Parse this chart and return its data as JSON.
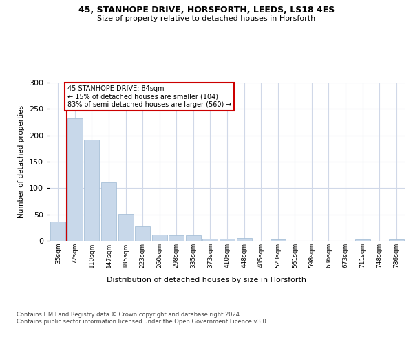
{
  "title1": "45, STANHOPE DRIVE, HORSFORTH, LEEDS, LS18 4ES",
  "title2": "Size of property relative to detached houses in Horsforth",
  "xlabel": "Distribution of detached houses by size in Horsforth",
  "ylabel": "Number of detached properties",
  "bar_labels": [
    "35sqm",
    "72sqm",
    "110sqm",
    "147sqm",
    "185sqm",
    "223sqm",
    "260sqm",
    "298sqm",
    "335sqm",
    "373sqm",
    "410sqm",
    "448sqm",
    "485sqm",
    "523sqm",
    "561sqm",
    "598sqm",
    "636sqm",
    "673sqm",
    "711sqm",
    "748sqm",
    "786sqm"
  ],
  "bar_values": [
    36,
    232,
    192,
    111,
    51,
    27,
    12,
    11,
    10,
    4,
    4,
    5,
    0,
    2,
    0,
    0,
    0,
    0,
    2,
    0,
    2
  ],
  "bar_color": "#c8d8ea",
  "bar_edge_color": "#a8c0d8",
  "vline_x": 0.5,
  "vline_color": "#cc0000",
  "ylim": [
    0,
    300
  ],
  "yticks": [
    0,
    50,
    100,
    150,
    200,
    250,
    300
  ],
  "annotation_text": "45 STANHOPE DRIVE: 84sqm\n← 15% of detached houses are smaller (104)\n83% of semi-detached houses are larger (560) →",
  "annotation_box_color": "#ffffff",
  "annotation_box_edge": "#cc0000",
  "footer_text": "Contains HM Land Registry data © Crown copyright and database right 2024.\nContains public sector information licensed under the Open Government Licence v3.0.",
  "background_color": "#ffffff",
  "grid_color": "#d0d8e8"
}
